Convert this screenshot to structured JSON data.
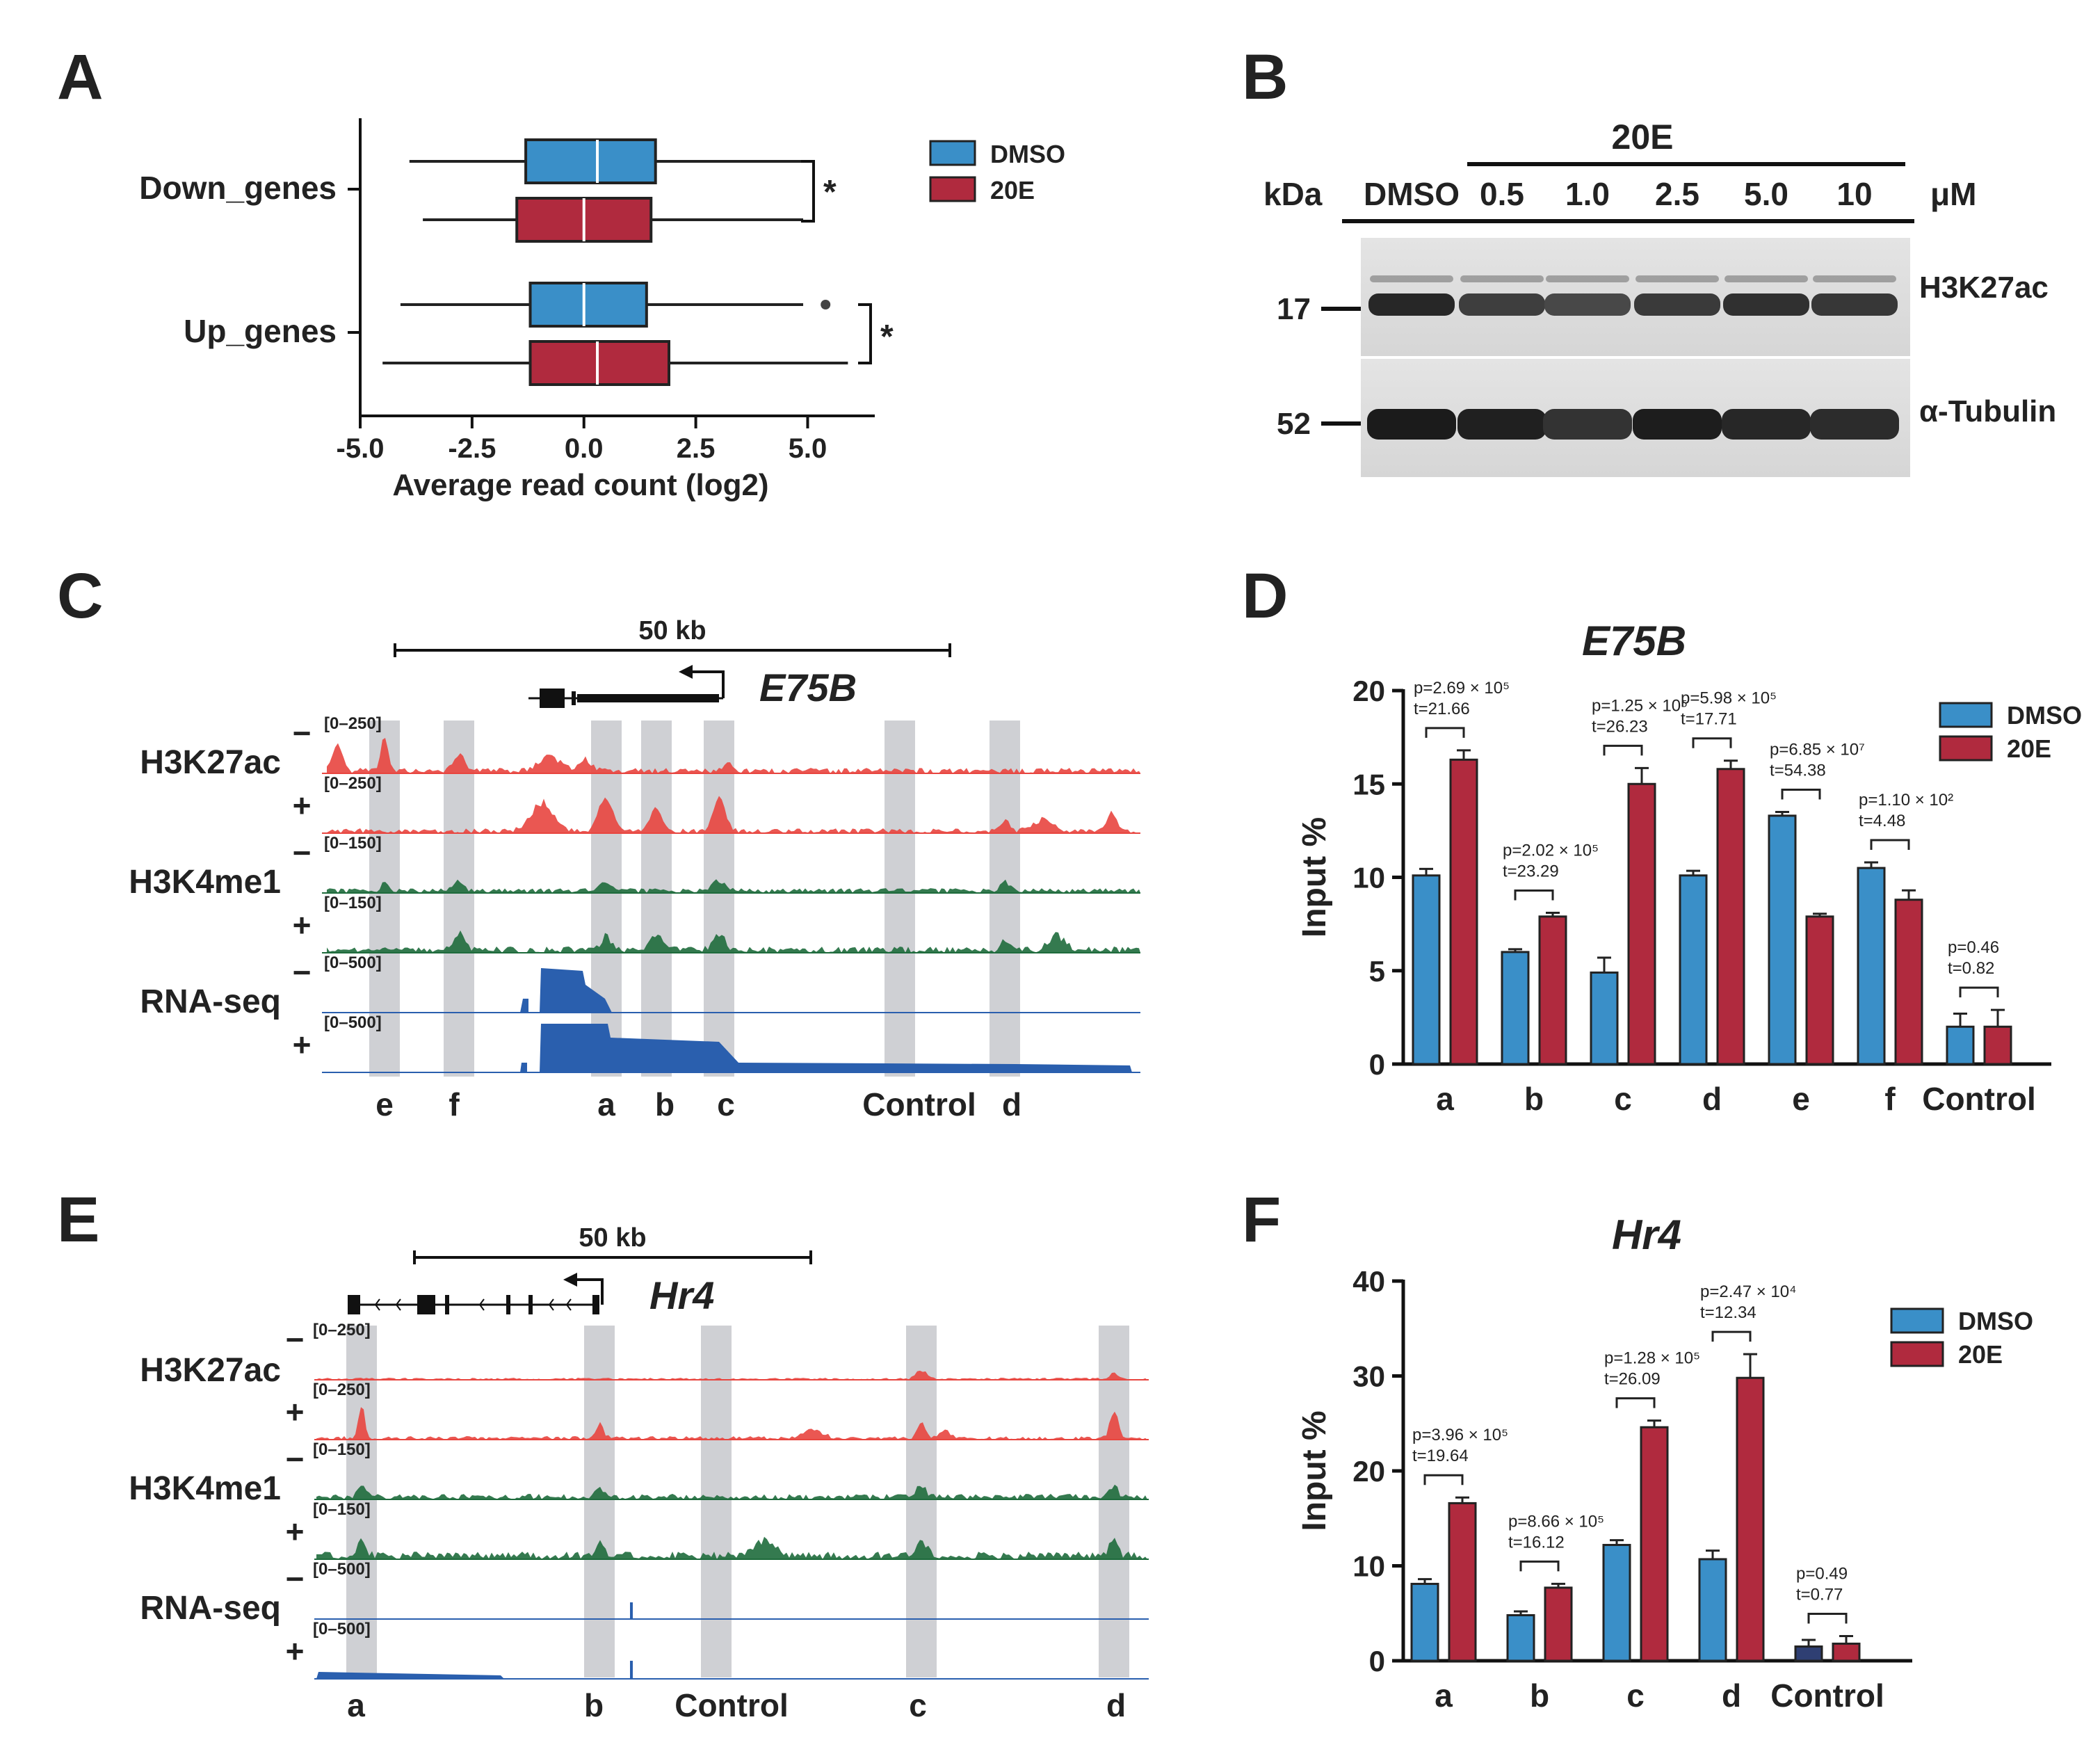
{
  "colors": {
    "dmso": "#3a8fc8",
    "e20": "#b02a3e",
    "red_track": "#e8453f",
    "green_track": "#1e6b3c",
    "blue_track": "#2a5fae",
    "grey_band": "#cfd0d4",
    "navy_bar": "#2f3f73"
  },
  "panels": {
    "A": "A",
    "B": "B",
    "C": "C",
    "D": "D",
    "E": "E",
    "F": "F"
  },
  "panel_b": {
    "treatment_label": "20E",
    "kda_label": "kDa",
    "lanes": [
      "DMSO",
      "0.5",
      "1.0",
      "2.5",
      "5.0",
      "10"
    ],
    "unit": "μM",
    "markers": [
      "17",
      "52"
    ],
    "blots": [
      "H3K27ac",
      "α-Tubulin"
    ],
    "h3k27ac_intensity": [
      0.92,
      0.82,
      0.78,
      0.84,
      0.88,
      0.85
    ],
    "tubulin_intensity": [
      0.95,
      0.93,
      0.85,
      0.94,
      0.9,
      0.88
    ]
  },
  "panel_c": {
    "scale_label": "50 kb",
    "gene": "E75B",
    "tracks": [
      {
        "group": "H3K27ac",
        "sign": "−",
        "range": "[0–250]"
      },
      {
        "group": "H3K27ac",
        "sign": "+",
        "range": "[0–250]"
      },
      {
        "group": "H3K4me1",
        "sign": "−",
        "range": "[0–150]"
      },
      {
        "group": "H3K4me1",
        "sign": "+",
        "range": "[0–150]"
      },
      {
        "group": "RNA-seq",
        "sign": "−",
        "range": "[0–500]"
      },
      {
        "group": "RNA-seq",
        "sign": "+",
        "range": "[0–500]"
      }
    ],
    "groups": [
      "H3K27ac",
      "H3K4me1",
      "RNA-seq"
    ],
    "regions": [
      "e",
      "f",
      "a",
      "b",
      "c",
      "Control",
      "d"
    ]
  },
  "panel_e": {
    "scale_label": "50 kb",
    "gene": "Hr4",
    "tracks": [
      {
        "group": "H3K27ac",
        "sign": "−",
        "range": "[0–250]"
      },
      {
        "group": "H3K27ac",
        "sign": "+",
        "range": "[0–250]"
      },
      {
        "group": "H3K4me1",
        "sign": "−",
        "range": "[0–150]"
      },
      {
        "group": "H3K4me1",
        "sign": "+",
        "range": "[0–150]"
      },
      {
        "group": "RNA-seq",
        "sign": "−",
        "range": "[0–500]"
      },
      {
        "group": "RNA-seq",
        "sign": "+",
        "range": "[0–500]"
      }
    ],
    "groups": [
      "H3K27ac",
      "H3K4me1",
      "RNA-seq"
    ],
    "regions": [
      "a",
      "b",
      "Control",
      "c",
      "d"
    ]
  },
  "chart_data": [
    {
      "panel": "A",
      "type": "box",
      "xlabel": "Average read count (log2)",
      "xlim": [
        -5.0,
        6.5
      ],
      "xticks": [
        "-5.0",
        "-2.5",
        "0.0",
        "2.5",
        "5.0"
      ],
      "xtick_values": [
        -5.0,
        -2.5,
        0.0,
        2.5,
        5.0
      ],
      "categories": [
        "Down_genes",
        "Up_genes"
      ],
      "legend": [
        "DMSO",
        "20E"
      ],
      "significance": [
        "*",
        "*"
      ],
      "boxes": [
        {
          "category": "Down_genes",
          "series": "DMSO",
          "min": -3.9,
          "q1": -1.3,
          "median": 0.3,
          "q3": 1.6,
          "max": 4.9
        },
        {
          "category": "Down_genes",
          "series": "20E",
          "min": -3.6,
          "q1": -1.5,
          "median": 0.0,
          "q3": 1.5,
          "max": 4.9
        },
        {
          "category": "Up_genes",
          "series": "DMSO",
          "min": -4.1,
          "q1": -1.2,
          "median": 0.0,
          "q3": 1.4,
          "max": 4.9,
          "outliers": [
            5.4
          ]
        },
        {
          "category": "Up_genes",
          "series": "20E",
          "min": -4.5,
          "q1": -1.2,
          "median": 0.3,
          "q3": 1.9,
          "max": 5.9
        }
      ]
    },
    {
      "panel": "D",
      "type": "bar",
      "title": "E75B",
      "ylabel": "Input %",
      "ylim": [
        0,
        20
      ],
      "yticks": [
        "0",
        "5",
        "10",
        "15",
        "20"
      ],
      "ytick_values": [
        0,
        5,
        10,
        15,
        20
      ],
      "categories": [
        "a",
        "b",
        "c",
        "d",
        "e",
        "f",
        "Control"
      ],
      "series": [
        {
          "name": "DMSO",
          "values": [
            10.1,
            6.0,
            4.9,
            10.1,
            13.3,
            10.5,
            2.0
          ],
          "errors": [
            0.35,
            0.15,
            0.8,
            0.25,
            0.2,
            0.3,
            0.7
          ]
        },
        {
          "name": "20E",
          "values": [
            16.3,
            7.9,
            15.0,
            15.8,
            7.9,
            8.8,
            2.0
          ],
          "errors": [
            0.5,
            0.2,
            0.85,
            0.45,
            0.15,
            0.5,
            0.9
          ]
        }
      ],
      "annotations": [
        {
          "p": "p=2.69 × 10⁵",
          "t": "t=21.66"
        },
        {
          "p": "p=2.02 × 10⁵",
          "t": "t=23.29"
        },
        {
          "p": "p=1.25 × 10⁵",
          "t": "t=26.23"
        },
        {
          "p": "p=5.98 × 10⁵",
          "t": "t=17.71"
        },
        {
          "p": "p=6.85 × 10⁷",
          "t": "t=54.38"
        },
        {
          "p": "p=1.10 × 10²",
          "t": "t=4.48"
        },
        {
          "p": "p=0.46",
          "t": "t=0.82"
        }
      ]
    },
    {
      "panel": "F",
      "type": "bar",
      "title": "Hr4",
      "ylabel": "Input %",
      "ylim": [
        0,
        40
      ],
      "yticks": [
        "0",
        "10",
        "20",
        "30",
        "40"
      ],
      "ytick_values": [
        0,
        10,
        20,
        30,
        40
      ],
      "categories": [
        "a",
        "b",
        "c",
        "d",
        "Control"
      ],
      "series": [
        {
          "name": "DMSO",
          "values": [
            8.1,
            4.8,
            12.2,
            10.7,
            1.5
          ],
          "errors": [
            0.5,
            0.4,
            0.5,
            0.9,
            0.7
          ]
        },
        {
          "name": "20E",
          "values": [
            16.6,
            7.7,
            24.6,
            29.8,
            1.8
          ],
          "errors": [
            0.6,
            0.4,
            0.7,
            2.5,
            0.8
          ]
        }
      ],
      "annotations": [
        {
          "p": "p=3.96 × 10⁵",
          "t": "t=19.64"
        },
        {
          "p": "p=8.66 × 10⁵",
          "t": "t=16.12"
        },
        {
          "p": "p=1.28 × 10⁵",
          "t": "t=26.09"
        },
        {
          "p": "p=2.47 × 10⁴",
          "t": "t=12.34"
        },
        {
          "p": "p=0.49",
          "t": "t=0.77"
        }
      ]
    }
  ]
}
